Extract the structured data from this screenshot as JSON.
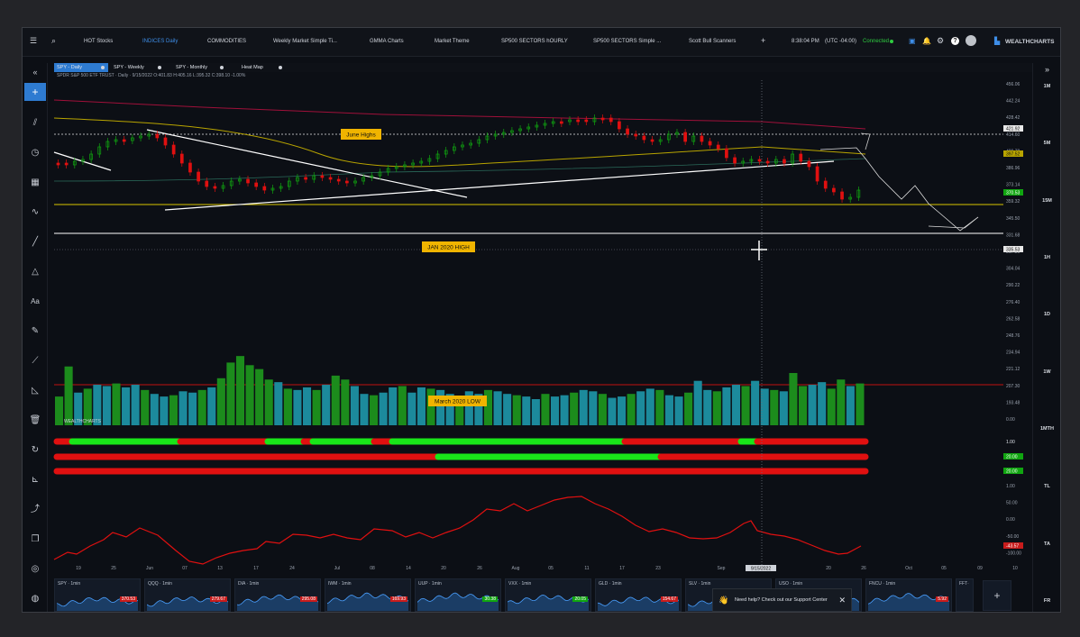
{
  "topbar": {
    "menu_icon": "hamburger-icon",
    "search_icon": "search-icon",
    "tabs": [
      "HOT Stocks",
      "INDICES Daily",
      "COMMODITIES",
      "Weekly Market Simple Ti...",
      "GMMA Charts",
      "Market Theme",
      "SP500 SECTORS hOURLY",
      "SP500 SECTORS Simple ...",
      "Scott Bull Scanners"
    ],
    "active_tab": 1,
    "add_label": "+",
    "time": "8:38:04 PM",
    "timezone": "(UTC -04:00)",
    "connection": "Connected",
    "brand": "WEALTHCHARTS"
  },
  "chart_tabs": [
    {
      "label": "SPY - Daily",
      "active": true
    },
    {
      "label": "SPY - Weekly",
      "active": false
    },
    {
      "label": "SPY - Monthly",
      "active": false
    },
    {
      "label": "Heat Map",
      "active": false
    }
  ],
  "collapse_left": "«",
  "collapse_right": "»",
  "symbol_line": "SPDR S&P 500 ETF TRUST  · Daily · 9/15/2022 O:401.83 H:405.16 L:395.32 C:398.10 -1.00%",
  "timeframes": [
    "1M",
    "5M",
    "15M",
    "1H",
    "1D",
    "1W",
    "1MTH",
    "TL",
    "TA",
    "FR"
  ],
  "annotations": {
    "june_highs": "June Highs",
    "jan_2020_high": "JAN 2020 HIGH",
    "march_2020_low": "March 2020 LOW",
    "sub_panel_brand": "WEALTHCHARTS"
  },
  "price_axis": [
    "456.06",
    "442.24",
    "428.42",
    "414.60",
    "400.78",
    "386.96",
    "373.14",
    "359.32",
    "345.50",
    "331.68",
    "317.86",
    "304.04",
    "290.22",
    "276.40",
    "262.58",
    "248.76",
    "234.94",
    "221.12",
    "207.30",
    "193.48",
    "0.00"
  ],
  "price_badges": {
    "a": "421.92",
    "b": "397.52",
    "c": "370.53",
    "d": "335.53"
  },
  "ribbon_axis": {
    "v1": "1.00",
    "b1": "20.00",
    "b2": "20.00"
  },
  "osc_axis": [
    "1.00",
    "50.00",
    "0.00",
    "-50.00",
    "-100.00"
  ],
  "osc_badge": "-43.57",
  "x_axis": [
    {
      "label": "19",
      "x": 62
    },
    {
      "label": "25",
      "x": 101
    },
    {
      "label": "Jun",
      "x": 141
    },
    {
      "label": "07",
      "x": 180
    },
    {
      "label": "13",
      "x": 219
    },
    {
      "label": "17",
      "x": 259
    },
    {
      "label": "24",
      "x": 299
    },
    {
      "label": "Jul",
      "x": 349
    },
    {
      "label": "08",
      "x": 388
    },
    {
      "label": "14",
      "x": 428
    },
    {
      "label": "20",
      "x": 467
    },
    {
      "label": "26",
      "x": 507
    },
    {
      "label": "Aug",
      "x": 547
    },
    {
      "label": "05",
      "x": 586
    },
    {
      "label": "11",
      "x": 626
    },
    {
      "label": "17",
      "x": 665
    },
    {
      "label": "23",
      "x": 705
    },
    {
      "label": "Sep",
      "x": 775
    },
    {
      "label": "08",
      "x": 814
    },
    {
      "label": "20",
      "x": 894
    },
    {
      "label": "26",
      "x": 933
    },
    {
      "label": "Oct",
      "x": 983
    },
    {
      "label": "05",
      "x": 1022
    },
    {
      "label": "09",
      "x": 1062
    },
    {
      "label": "10",
      "x": 1101
    }
  ],
  "crosshair_date": "9/15/2022",
  "watchlist": [
    {
      "symbol": "SPY · 1min",
      "price": "370.53",
      "up": false
    },
    {
      "symbol": "QQQ · 1min",
      "price": "279.67",
      "up": false
    },
    {
      "symbol": "DIA · 1min",
      "price": "295.08",
      "up": false
    },
    {
      "symbol": "IWM · 1min",
      "price": "169.93",
      "up": false
    },
    {
      "symbol": "UUP · 1min",
      "price": "30.38",
      "up": true
    },
    {
      "symbol": "VXX · 1min",
      "price": "20.05",
      "up": true
    },
    {
      "symbol": "GLD · 1min",
      "price": "154.67",
      "up": false
    },
    {
      "symbol": "SLV · 1min",
      "price": "",
      "up": false
    },
    {
      "symbol": "USO · 1min",
      "price": "",
      "up": false
    },
    {
      "symbol": "FNCU · 1min",
      "price": "5.92",
      "up": false
    },
    {
      "symbol": "FFT·",
      "price": "",
      "up": false
    }
  ],
  "help_text": "Need help? Check out our Support Center",
  "colors": {
    "accent": "#2e7bd1",
    "up": "#10a510",
    "down": "#e01010",
    "annotation": "#f0b400",
    "connected": "#2ecc40"
  }
}
